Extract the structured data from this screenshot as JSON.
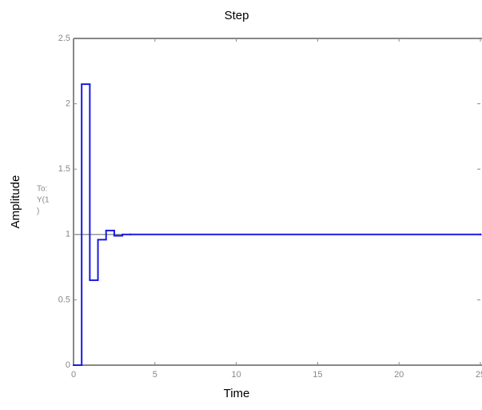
{
  "chart_data": {
    "type": "step",
    "title": "Step",
    "x_label": "Time",
    "y_label": "Amplitude",
    "output_label_lines": [
      "To:",
      "Y(1",
      ")"
    ],
    "x": [
      0,
      0.5,
      1,
      1.5,
      2,
      2.5,
      3,
      3.5,
      25
    ],
    "values": [
      0,
      2.15,
      0.65,
      0.96,
      1.03,
      0.99,
      1.0,
      1.0,
      1.0
    ],
    "color": "#1a1ae0",
    "steady_state": 1,
    "xlim": [
      0,
      25
    ],
    "xticks": [
      0,
      5,
      10,
      15,
      20,
      25
    ],
    "ylim": [
      0,
      2.5
    ],
    "yticks": [
      0,
      0.5,
      1,
      1.5,
      2,
      2.5
    ]
  }
}
